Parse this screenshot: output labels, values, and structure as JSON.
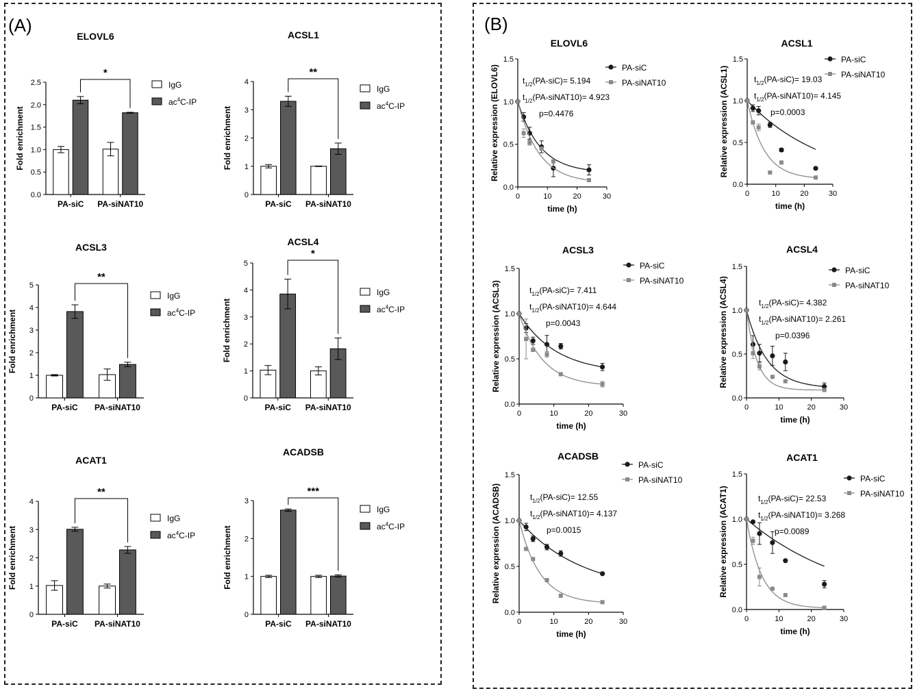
{
  "panels": {
    "a_label": "(A)",
    "b_label": "(B)"
  },
  "colors": {
    "igg_fill": "#ffffff",
    "ip_fill": "#595959",
    "sic_line": "#1a1a1a",
    "sinat_line": "#8a8a8a"
  },
  "chart_data": [
    {
      "panel": "A",
      "type": "bar",
      "title": "ELOVL6",
      "categories": [
        "PA-siC",
        "PA-siNAT10"
      ],
      "series": [
        {
          "name": "IgG",
          "values": [
            1.0,
            1.01
          ],
          "errors": [
            0.07,
            0.15
          ]
        },
        {
          "name": "ac4C-IP",
          "values": [
            2.1,
            1.82
          ],
          "errors": [
            0.08,
            0.01
          ]
        }
      ],
      "ylabel": "Fold enrichment",
      "ylim": [
        0,
        2.5
      ],
      "yticks": [
        "0.0",
        "0.5",
        "1.0",
        "1.5",
        "2.0",
        "2.5"
      ],
      "significance": "*"
    },
    {
      "panel": "A",
      "type": "bar",
      "title": "ACSL1",
      "categories": [
        "PA-siC",
        "PA-siNAT10"
      ],
      "series": [
        {
          "name": "IgG",
          "values": [
            1.0,
            1.0
          ],
          "errors": [
            0.06,
            0.01
          ]
        },
        {
          "name": "ac4C-IP",
          "values": [
            3.3,
            1.62
          ],
          "errors": [
            0.18,
            0.2
          ]
        }
      ],
      "ylabel": "Fold enrichment",
      "ylim": [
        0,
        4
      ],
      "yticks": [
        "0",
        "1",
        "2",
        "3",
        "4"
      ],
      "significance": "**"
    },
    {
      "panel": "A",
      "type": "bar",
      "title": "ACSL3",
      "categories": [
        "PA-siC",
        "PA-siNAT10"
      ],
      "series": [
        {
          "name": "IgG",
          "values": [
            1.0,
            1.03
          ],
          "errors": [
            0.03,
            0.25
          ]
        },
        {
          "name": "ac4C-IP",
          "values": [
            3.82,
            1.48
          ],
          "errors": [
            0.3,
            0.1
          ]
        }
      ],
      "ylabel": "Fold enrichment",
      "ylim": [
        0,
        5
      ],
      "yticks": [
        "0",
        "1",
        "2",
        "3",
        "4",
        "5"
      ],
      "significance": "**"
    },
    {
      "panel": "A",
      "type": "bar",
      "title": "ACSL4",
      "categories": [
        "PA-siC",
        "PA-siNAT10"
      ],
      "series": [
        {
          "name": "IgG",
          "values": [
            1.03,
            1.0
          ],
          "errors": [
            0.17,
            0.15
          ]
        },
        {
          "name": "ac4C-IP",
          "values": [
            3.85,
            1.82
          ],
          "errors": [
            0.55,
            0.4
          ]
        }
      ],
      "ylabel": "Fold enrichment",
      "ylim": [
        0,
        5
      ],
      "yticks": [
        "0",
        "1",
        "2",
        "3",
        "4",
        "5"
      ],
      "significance": "*"
    },
    {
      "panel": "A",
      "type": "bar",
      "title": "ACAT1",
      "categories": [
        "PA-siC",
        "PA-siNAT10"
      ],
      "series": [
        {
          "name": "IgG",
          "values": [
            1.02,
            1.0
          ],
          "errors": [
            0.17,
            0.07
          ]
        },
        {
          "name": "ac4C-IP",
          "values": [
            3.01,
            2.28
          ],
          "errors": [
            0.07,
            0.12
          ]
        }
      ],
      "ylabel": "Fold enrichment",
      "ylim": [
        0,
        4
      ],
      "yticks": [
        "0",
        "1",
        "2",
        "3",
        "4"
      ],
      "significance": "**"
    },
    {
      "panel": "A",
      "type": "bar",
      "title": "ACADSB",
      "categories": [
        "PA-siC",
        "PA-siNAT10"
      ],
      "series": [
        {
          "name": "IgG",
          "values": [
            1.0,
            1.0
          ],
          "errors": [
            0.03,
            0.03
          ]
        },
        {
          "name": "ac4C-IP",
          "values": [
            2.75,
            1.01
          ],
          "errors": [
            0.03,
            0.03
          ]
        }
      ],
      "ylabel": "Fold enrichment",
      "ylim": [
        0,
        3
      ],
      "yticks": [
        "0",
        "1",
        "2",
        "3"
      ],
      "significance": "***"
    },
    {
      "panel": "B",
      "type": "scatter",
      "title": "ELOVL6",
      "x": [
        0,
        2,
        4,
        8,
        12,
        24
      ],
      "series": [
        {
          "name": "PA-siC",
          "values": [
            1.0,
            0.82,
            0.63,
            0.47,
            0.22,
            0.2
          ],
          "errors": [
            0.0,
            0.05,
            0.07,
            0.07,
            0.1,
            0.06
          ]
        },
        {
          "name": "PA-siNAT10",
          "values": [
            1.0,
            0.63,
            0.52,
            0.45,
            0.3,
            0.08
          ],
          "errors": [
            0.0,
            0.05,
            0.03,
            0.02,
            0.02,
            0.01
          ]
        }
      ],
      "half_life": {
        "sic": 5.194,
        "sinat": 4.923
      },
      "ann_sic": "(PA-siC)= 5.194",
      "ann_sinat": "(PA-siNAT10)= 4.923",
      "pval": "p=0.4476",
      "xlabel": "time (h)",
      "ylabel": "Relative expression (ELOVL6)",
      "xlim": [
        0,
        30
      ],
      "ylim": [
        0,
        1.5
      ],
      "xticks": [
        "0",
        "10",
        "20",
        "30"
      ],
      "yticks": [
        "0.0",
        "0.5",
        "1.0",
        "1.5"
      ]
    },
    {
      "panel": "B",
      "type": "scatter",
      "title": "ACSL1",
      "x": [
        0,
        2,
        4,
        8,
        12,
        24
      ],
      "series": [
        {
          "name": "PA-siC",
          "values": [
            1.0,
            0.91,
            0.88,
            0.71,
            0.41,
            0.19
          ],
          "errors": [
            0.0,
            0.04,
            0.05,
            0.03,
            0.02,
            0.0
          ]
        },
        {
          "name": "PA-siNAT10",
          "values": [
            1.0,
            0.74,
            0.68,
            0.14,
            0.26,
            0.08
          ],
          "errors": [
            0.0,
            0.02,
            0.04,
            0.0,
            0.0,
            0.0
          ]
        }
      ],
      "half_life": {
        "sic": 19.03,
        "sinat": 4.145
      },
      "ann_sic": "(PA-siC)= 19.03",
      "ann_sinat": "(PA-siNAT10)= 4.145",
      "pval": "p=0.0003",
      "xlabel": "time (h)",
      "ylabel": "Relative expression (ACSL1)",
      "xlim": [
        0,
        30
      ],
      "ylim": [
        0,
        1.5
      ],
      "xticks": [
        "0",
        "10",
        "20",
        "30"
      ],
      "yticks": [
        "0.0",
        "0.5",
        "1.0",
        "1.5"
      ]
    },
    {
      "panel": "B",
      "type": "scatter",
      "title": "ACSL3",
      "x": [
        0,
        2,
        4,
        8,
        12,
        24
      ],
      "series": [
        {
          "name": "PA-siC",
          "values": [
            1.0,
            0.84,
            0.7,
            0.66,
            0.64,
            0.41
          ],
          "errors": [
            0.0,
            0.05,
            0.04,
            0.1,
            0.03,
            0.04
          ]
        },
        {
          "name": "PA-siNAT10",
          "values": [
            1.0,
            0.72,
            0.6,
            0.55,
            0.33,
            0.22
          ],
          "errors": [
            0.0,
            0.22,
            0.02,
            0.03,
            0.01,
            0.03
          ]
        }
      ],
      "half_life": {
        "sic": 7.411,
        "sinat": 4.644
      },
      "ann_sic": "(PA-siC)= 7.411",
      "ann_sinat": "(PA-siNAT10)= 4.644",
      "pval": "p=0.0043",
      "xlabel": "time (h)",
      "ylabel": "Relative expression (ACSL3)",
      "xlim": [
        0,
        30
      ],
      "ylim": [
        0,
        1.5
      ],
      "xticks": [
        "0",
        "10",
        "20",
        "30"
      ],
      "yticks": [
        "0.0",
        "0.5",
        "1.0",
        "1.5"
      ]
    },
    {
      "panel": "B",
      "type": "scatter",
      "title": "ACSL4",
      "x": [
        0,
        2,
        4,
        8,
        12,
        24
      ],
      "series": [
        {
          "name": "PA-siC",
          "values": [
            1.0,
            0.61,
            0.51,
            0.48,
            0.41,
            0.13
          ],
          "errors": [
            0.0,
            0.1,
            0.1,
            0.11,
            0.1,
            0.04
          ]
        },
        {
          "name": "PA-siNAT10",
          "values": [
            1.0,
            0.51,
            0.36,
            0.24,
            0.19,
            0.09
          ],
          "errors": [
            0.0,
            0.06,
            0.04,
            0.01,
            0.01,
            0.01
          ]
        }
      ],
      "half_life": {
        "sic": 4.382,
        "sinat": 2.261
      },
      "ann_sic": "(PA-siC)= 4.382",
      "ann_sinat": "(PA-siNAT10)= 2.261",
      "pval": "p=0.0396",
      "xlabel": "time (h)",
      "ylabel": "Relative expression (ACSL4)",
      "xlim": [
        0,
        30
      ],
      "ylim": [
        0,
        1.5
      ],
      "xticks": [
        "0",
        "10",
        "20",
        "30"
      ],
      "yticks": [
        "0.0",
        "0.5",
        "1.0",
        "1.5"
      ]
    },
    {
      "panel": "B",
      "type": "scatter",
      "title": "ACADSB",
      "x": [
        0,
        2,
        4,
        8,
        12,
        24
      ],
      "series": [
        {
          "name": "PA-siC",
          "values": [
            1.0,
            0.93,
            0.8,
            0.71,
            0.64,
            0.42
          ],
          "errors": [
            0.0,
            0.04,
            0.03,
            0.03,
            0.03,
            0.0
          ]
        },
        {
          "name": "PA-siNAT10",
          "values": [
            1.0,
            0.69,
            0.58,
            0.35,
            0.18,
            0.11
          ],
          "errors": [
            0.0,
            0.01,
            0.01,
            0.01,
            0.0,
            0.0
          ]
        }
      ],
      "half_life": {
        "sic": 12.55,
        "sinat": 4.137
      },
      "ann_sic": "(PA-siC)= 12.55",
      "ann_sinat": "(PA-siNAT10)= 4.137",
      "pval": "p=0.0015",
      "xlabel": "time (h)",
      "ylabel": "Relative expression (ACADSB)",
      "xlim": [
        0,
        30
      ],
      "ylim": [
        0,
        1.5
      ],
      "xticks": [
        "0",
        "10",
        "20",
        "30"
      ],
      "yticks": [
        "0.0",
        "0.5",
        "1.0",
        "1.5"
      ]
    },
    {
      "panel": "B",
      "type": "scatter",
      "title": "ACAT1",
      "x": [
        0,
        2,
        4,
        8,
        12,
        24
      ],
      "series": [
        {
          "name": "PA-siC",
          "values": [
            1.0,
            0.97,
            0.84,
            0.74,
            0.54,
            0.28
          ],
          "errors": [
            0.0,
            0.0,
            0.12,
            0.12,
            0.0,
            0.04
          ]
        },
        {
          "name": "PA-siNAT10",
          "values": [
            1.0,
            0.76,
            0.36,
            0.23,
            0.16,
            0.02
          ],
          "errors": [
            0.0,
            0.04,
            0.1,
            0.0,
            0.0,
            0.0
          ]
        }
      ],
      "half_life": {
        "sic": 22.53,
        "sinat": 3.268
      },
      "ann_sic": "(PA-siC)= 22.53",
      "ann_sinat": "(PA-siNAT10)= 3.268",
      "pval": "p=0.0089",
      "xlabel": "time (h)",
      "ylabel": "Relative expression (ACAT1)",
      "xlim": [
        0,
        30
      ],
      "ylim": [
        0,
        1.5
      ],
      "xticks": [
        "0",
        "10",
        "20",
        "30"
      ],
      "yticks": [
        "0.0",
        "0.5",
        "1.0",
        "1.5"
      ]
    }
  ]
}
